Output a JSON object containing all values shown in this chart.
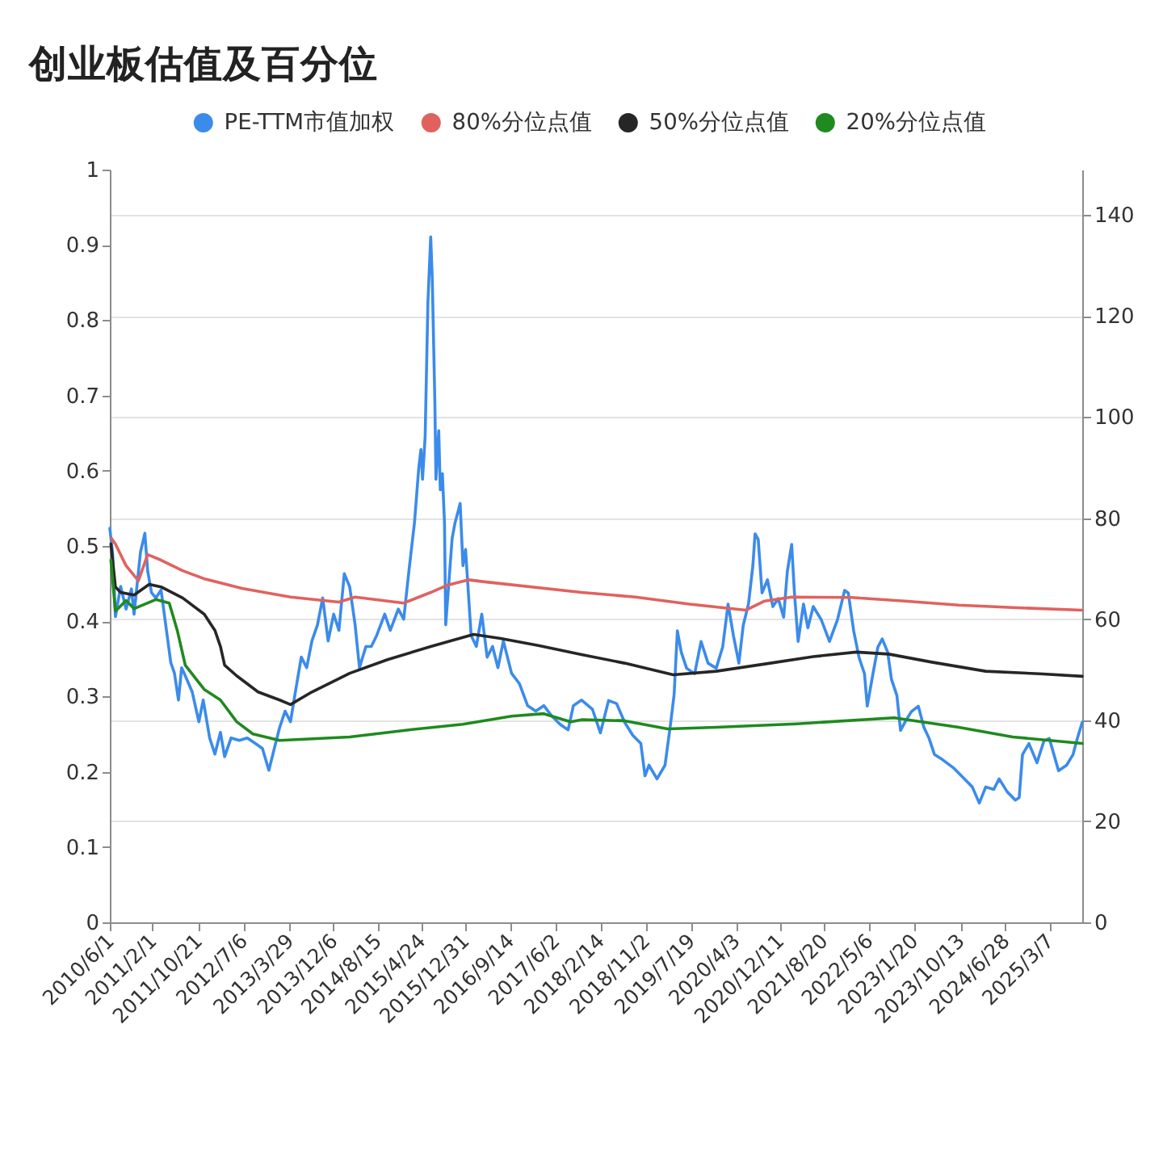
{
  "chart_data": {
    "type": "line",
    "title": "创业板估值及百分位",
    "xlim": [
      "2010-06-01",
      "2025-09-12"
    ],
    "xticks": [
      {
        "value": "2010-06-01",
        "label": "2010/6/1"
      },
      {
        "value": "2011-02-01",
        "label": "2011/2/1"
      },
      {
        "value": "2011-10-21",
        "label": "2011/10/21"
      },
      {
        "value": "2012-07-06",
        "label": "2012/7/6"
      },
      {
        "value": "2013-03-29",
        "label": "2013/3/29"
      },
      {
        "value": "2013-12-06",
        "label": "2013/12/6"
      },
      {
        "value": "2014-08-15",
        "label": "2014/8/15"
      },
      {
        "value": "2015-04-24",
        "label": "2015/4/24"
      },
      {
        "value": "2015-12-31",
        "label": "2015/12/31"
      },
      {
        "value": "2016-09-14",
        "label": "2016/9/14"
      },
      {
        "value": "2017-06-02",
        "label": "2017/6/2"
      },
      {
        "value": "2018-02-14",
        "label": "2018/2/14"
      },
      {
        "value": "2018-11-02",
        "label": "2018/11/2"
      },
      {
        "value": "2019-07-19",
        "label": "2019/7/19"
      },
      {
        "value": "2020-04-03",
        "label": "2020/4/3"
      },
      {
        "value": "2020-12-11",
        "label": "2020/12/11"
      },
      {
        "value": "2021-08-20",
        "label": "2021/8/20"
      },
      {
        "value": "2022-05-06",
        "label": "2022/5/6"
      },
      {
        "value": "2023-01-20",
        "label": "2023/1/20"
      },
      {
        "value": "2023-10-13",
        "label": "2023/10/13"
      },
      {
        "value": "2024-06-28",
        "label": "2024/6/28"
      },
      {
        "value": "2025-03-07",
        "label": "2025/3/7"
      }
    ],
    "ylim": [
      0,
      1
    ],
    "yticks": [
      0,
      0.1,
      0.2,
      0.3,
      0.4,
      0.5,
      0.6,
      0.7,
      0.8,
      0.9,
      1
    ],
    "y2lim": [
      0,
      149
    ],
    "y2ticks": [
      0,
      20,
      40,
      60,
      80,
      100,
      120,
      140
    ],
    "legend": "top",
    "grid": "y2",
    "series": [
      {
        "name": "PE-TTM市值加权",
        "color": "#3b8beb",
        "axis": "y2",
        "x": [
          "2010-06-01",
          "2010-06-17",
          "2010-07-03",
          "2010-08-02",
          "2010-09-02",
          "2010-10-03",
          "2010-10-18",
          "2010-11-24",
          "2010-12-19",
          "2011-01-04",
          "2011-01-26",
          "2011-02-20",
          "2011-03-22",
          "2011-04-22",
          "2011-05-17",
          "2011-06-07",
          "2011-06-30",
          "2011-07-18",
          "2011-08-08",
          "2011-09-17",
          "2011-10-25",
          "2011-11-19",
          "2011-12-26",
          "2012-01-25",
          "2012-02-26",
          "2012-03-21",
          "2012-04-27",
          "2012-06-13",
          "2012-07-29",
          "2012-09-13",
          "2012-10-24",
          "2012-11-30",
          "2012-12-31",
          "2013-01-31",
          "2013-03-03",
          "2013-04-03",
          "2013-05-03",
          "2013-06-04",
          "2013-07-05",
          "2013-08-04",
          "2013-09-05",
          "2013-10-05",
          "2013-11-05",
          "2013-12-07",
          "2014-01-06",
          "2014-02-06",
          "2014-03-09",
          "2014-04-09",
          "2014-05-04",
          "2014-06-10",
          "2014-07-11",
          "2014-08-11",
          "2014-09-26",
          "2014-10-28",
          "2014-12-13",
          "2015-01-13",
          "2015-02-12",
          "2015-03-16",
          "2015-04-09",
          "2015-04-22",
          "2015-05-01",
          "2015-05-16",
          "2015-06-01",
          "2015-06-17",
          "2015-06-26",
          "2015-07-11",
          "2015-07-17",
          "2015-08-02",
          "2015-08-11",
          "2015-08-23",
          "2015-09-04",
          "2015-09-11",
          "2015-10-18",
          "2015-11-03",
          "2015-12-03",
          "2015-12-19",
          "2016-01-03",
          "2016-02-04",
          "2016-03-05",
          "2016-04-05",
          "2016-05-06",
          "2016-06-06",
          "2016-07-07",
          "2016-08-07",
          "2016-09-23",
          "2016-11-08",
          "2016-12-24",
          "2017-02-09",
          "2017-03-27",
          "2017-05-13",
          "2017-06-28",
          "2017-08-14",
          "2017-09-13",
          "2017-10-30",
          "2017-12-31",
          "2018-02-15",
          "2018-04-03",
          "2018-05-19",
          "2018-07-04",
          "2018-08-20",
          "2018-10-05",
          "2018-10-29",
          "2018-11-21",
          "2019-01-06",
          "2019-02-21",
          "2019-03-24",
          "2019-04-14",
          "2019-05-03",
          "2019-05-25",
          "2019-06-25",
          "2019-08-10",
          "2019-09-16",
          "2019-10-26",
          "2019-12-12",
          "2020-01-18",
          "2020-02-18",
          "2020-03-20",
          "2020-04-20",
          "2020-05-15",
          "2020-06-14",
          "2020-07-09",
          "2020-07-22",
          "2020-08-09",
          "2020-08-31",
          "2020-10-01",
          "2020-11-01",
          "2020-12-02",
          "2021-01-02",
          "2021-01-23",
          "2021-02-17",
          "2021-03-05",
          "2021-03-26",
          "2021-04-26",
          "2021-05-21",
          "2021-06-21",
          "2021-08-06",
          "2021-09-22",
          "2021-11-07",
          "2021-12-18",
          "2022-01-08",
          "2022-02-08",
          "2022-03-11",
          "2022-04-11",
          "2022-04-27",
          "2022-05-27",
          "2022-06-27",
          "2022-07-22",
          "2022-08-22",
          "2022-09-13",
          "2022-10-14",
          "2022-11-04",
          "2022-11-29",
          "2023-01-05",
          "2023-02-14",
          "2023-03-18",
          "2023-04-17",
          "2023-05-18",
          "2023-07-03",
          "2023-09-03",
          "2023-11-05",
          "2023-12-21",
          "2024-01-30",
          "2024-03-07",
          "2024-04-22",
          "2024-05-23",
          "2024-07-09",
          "2024-08-24",
          "2024-09-15",
          "2024-10-04",
          "2024-11-10",
          "2024-12-26",
          "2025-02-04",
          "2025-03-07",
          "2025-04-29",
          "2025-06-14",
          "2025-07-21",
          "2025-08-15",
          "2025-09-12"
        ],
        "values": [
          78,
          73,
          60.5,
          66.5,
          62,
          66,
          61,
          73.3,
          77,
          69.6,
          65.3,
          64.2,
          65.8,
          57.8,
          51.4,
          49.3,
          44,
          50.4,
          48.8,
          45.6,
          39.7,
          44,
          36.5,
          33.3,
          37.6,
          32.8,
          36.5,
          36,
          36.5,
          35.4,
          34.4,
          30.1,
          34.4,
          38.6,
          41.8,
          39.7,
          46,
          52.5,
          50.4,
          55.7,
          58.9,
          64.2,
          55.7,
          61,
          57.8,
          69,
          66.4,
          58.9,
          50.4,
          54.6,
          54.6,
          56.8,
          61,
          57.8,
          62,
          60,
          69.6,
          79.2,
          89.8,
          93.6,
          87.7,
          96.2,
          122.9,
          135.7,
          127.2,
          102.6,
          87.7,
          97.3,
          85.6,
          88.8,
          79.2,
          58.9,
          76,
          79,
          82.9,
          70.6,
          73.8,
          56.8,
          54.6,
          61,
          52.5,
          54.6,
          50.4,
          55.7,
          49.3,
          47.2,
          42.9,
          41.8,
          42.9,
          40.8,
          39.2,
          38.1,
          42.9,
          44,
          42.2,
          37.5,
          43.9,
          43.3,
          39.6,
          37,
          35.4,
          29,
          31.1,
          28.4,
          31.1,
          39.1,
          45,
          57.7,
          53.5,
          50.3,
          49.2,
          55.6,
          51.3,
          50.3,
          54.5,
          63,
          56.7,
          51.3,
          58.8,
          63,
          70.5,
          76.9,
          75.8,
          65.2,
          67.8,
          62.5,
          64.1,
          60.4,
          69.4,
          74.8,
          65.2,
          55.6,
          63,
          58.3,
          62.5,
          59.9,
          55.6,
          59.9,
          65.7,
          65.2,
          57.7,
          52.4,
          49.2,
          42.8,
          48.7,
          54.5,
          56.1,
          53.5,
          48.1,
          44.9,
          38,
          39.6,
          41.7,
          42.8,
          38.6,
          36.4,
          33.2,
          32.2,
          30.6,
          28.4,
          26.8,
          23.6,
          26.8,
          26.3,
          28.4,
          25.8,
          24.2,
          24.7,
          33.2,
          35.4,
          31.6,
          35.9,
          36.4,
          30,
          31.1,
          33.2,
          36.4,
          39.6
        ]
      },
      {
        "name": "80%分位点值",
        "color": "#e0625f",
        "axis": "y2",
        "x": [
          "2010-06-10",
          "2010-07-03",
          "2010-09-02",
          "2010-11-12",
          "2011-01-04",
          "2011-03-22",
          "2011-07-24",
          "2011-11-25",
          "2012-06-28",
          "2013-04-03",
          "2014-01-06",
          "2014-04-09",
          "2015-01-13",
          "2015-06-17",
          "2015-09-17",
          "2016-01-19",
          "2016-04-21",
          "2017-10-30",
          "2018-09-04",
          "2019-07-11",
          "2020-02-12",
          "2020-05-31",
          "2020-09-15",
          "2021-02-17",
          "2022-01-24",
          "2022-11-29",
          "2023-10-04",
          "2024-08-09",
          "2025-09-12"
        ],
        "values": [
          76,
          74.9,
          70.6,
          67.6,
          72.8,
          71.7,
          69.6,
          68,
          66.1,
          64.4,
          63.4,
          64.4,
          63.2,
          65.3,
          66.7,
          67.8,
          67.4,
          65.3,
          64.4,
          63,
          62.2,
          61.8,
          63.6,
          64.4,
          64.3,
          63.6,
          62.8,
          62.3,
          61.8
        ]
      },
      {
        "name": "50%分位点值",
        "color": "#262626",
        "axis": "y2",
        "x": [
          "2010-06-07",
          "2010-07-03",
          "2010-08-02",
          "2010-10-18",
          "2011-01-13",
          "2011-03-22",
          "2011-07-24",
          "2011-11-25",
          "2012-01-25",
          "2012-02-26",
          "2012-03-21",
          "2012-05-29",
          "2012-09-29",
          "2013-01-31",
          "2013-04-03",
          "2013-08-04",
          "2014-03-09",
          "2014-10-12",
          "2015-06-17",
          "2016-02-18",
          "2016-07-22",
          "2017-02-24",
          "2017-10-30",
          "2018-07-04",
          "2019-04-09",
          "2019-12-12",
          "2020-10-17",
          "2021-06-21",
          "2022-02-23",
          "2022-08-28",
          "2023-05-03",
          "2024-03-07",
          "2025-01-10",
          "2025-09-12"
        ],
        "values": [
          74.9,
          66.4,
          65.3,
          64.8,
          66.9,
          66.4,
          64.2,
          61,
          57.8,
          54.6,
          50.9,
          48.8,
          45.6,
          44,
          43.1,
          45.6,
          49.3,
          52,
          54.6,
          57,
          56.2,
          54.8,
          53,
          51.3,
          49,
          49.7,
          51.3,
          52.6,
          53.5,
          53.1,
          51.5,
          49.7,
          49.2,
          48.7
        ]
      },
      {
        "name": "20%分位点值",
        "color": "#1f8a1f",
        "axis": "y2",
        "x": [
          "2010-06-07",
          "2010-07-03",
          "2010-09-02",
          "2010-10-18",
          "2011-02-20",
          "2011-05-08",
          "2011-06-23",
          "2011-08-08",
          "2011-11-25",
          "2012-02-26",
          "2012-05-29",
          "2012-08-30",
          "2013-01-31",
          "2014-03-09",
          "2015-02-12",
          "2015-12-19",
          "2016-09-23",
          "2017-03-27",
          "2017-08-28",
          "2017-10-30",
          "2018-07-04",
          "2019-03-08",
          "2019-12-12",
          "2021-03-20",
          "2022-09-28",
          "2023-10-04",
          "2024-08-09",
          "2025-09-12"
        ],
        "values": [
          71.7,
          61.6,
          63.7,
          62.1,
          63.9,
          63.2,
          57.8,
          50.9,
          46.1,
          44,
          39.7,
          37.3,
          36,
          36.7,
          38.1,
          39.2,
          40.8,
          41.3,
          39.7,
          40.1,
          39.9,
          38.3,
          38.6,
          39.3,
          40.5,
          38.6,
          36.7,
          35.4
        ]
      }
    ]
  }
}
